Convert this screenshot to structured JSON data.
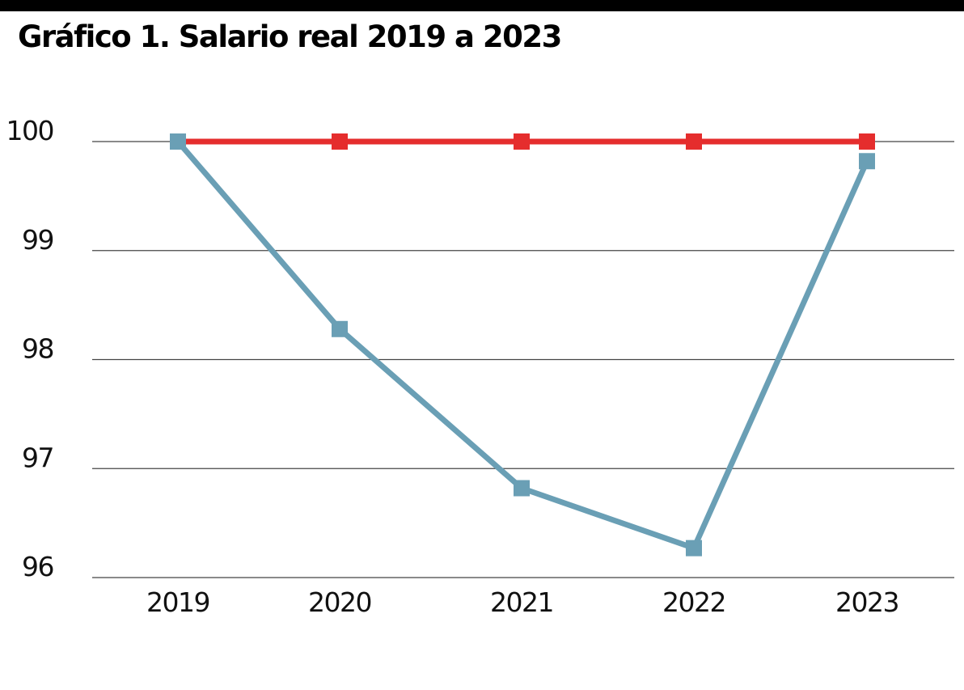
{
  "chart_data": {
    "type": "line",
    "title": "Gráfico 1. Salario real 2019 a 2023",
    "xlabel": "",
    "ylabel": "",
    "categories": [
      "2019",
      "2020",
      "2021",
      "2022",
      "2023"
    ],
    "y_ticks": [
      100,
      99,
      98,
      97,
      96
    ],
    "ylim": [
      96,
      100
    ],
    "grid": true,
    "legend": "none",
    "series": [
      {
        "color": "#e52d2d",
        "values": [
          100,
          100,
          100,
          100,
          100
        ]
      },
      {
        "color": "#6a9fb5",
        "values": [
          100,
          98.28,
          96.82,
          96.27,
          99.82
        ]
      }
    ]
  }
}
